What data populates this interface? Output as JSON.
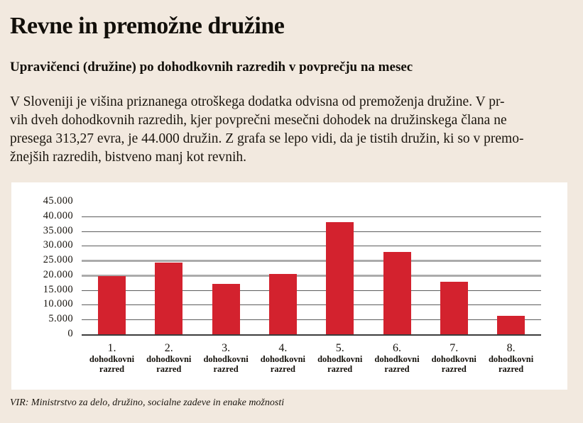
{
  "page": {
    "background_color": "#f2e9df",
    "accent_color": "#d3222e"
  },
  "header": {
    "title": "Revne in premožne družine",
    "subtitle": "Upravičenci (družine) po dohodkovnih razredih v povprečju na mesec"
  },
  "body_text": {
    "lines": [
      "V Sloveniji je višina priznanega otroškega dodatka odvisna od premoženja družine. V pr-",
      "vih dveh dohodkovnih razredih, kjer povprečni mesečni dohodek na družinskega člana ne",
      "presega 313,27 evra, je 44.000 družin. Z grafa se lepo vidi, da je tistih družin, ki so v premo-",
      "žnejših razredih, bistveno manj kot revnih."
    ]
  },
  "chart_data": {
    "type": "bar",
    "title": "Upravičenci (družine) po dohodkovnih razredih v povprečju na mesec",
    "categories": [
      "1.",
      "2.",
      "3.",
      "4.",
      "5.",
      "6.",
      "7.",
      "8."
    ],
    "category_sublabel_line1": "dohodkovni",
    "category_sublabel_line2": "razred",
    "values": [
      19700,
      24300,
      17200,
      20500,
      38000,
      28000,
      17800,
      6300
    ],
    "y_tick_labels": [
      "45.000",
      "40.000",
      "35.000",
      "30.000",
      "25.000",
      "20.000",
      "15.000",
      "10.000",
      "5.000",
      "0"
    ],
    "y_tick_values": [
      45000,
      40000,
      35000,
      30000,
      25000,
      20000,
      15000,
      10000,
      5000,
      0
    ],
    "ylim": [
      0,
      45000
    ],
    "xlabel": "",
    "ylabel": "",
    "grid": "horizontal",
    "legend": "none",
    "bar_color": "#d3222e",
    "panel_background": "#ffffff"
  },
  "footer": {
    "source": "VIR: Ministrstvo za delo, družino, socialne zadeve in enake možnosti"
  }
}
